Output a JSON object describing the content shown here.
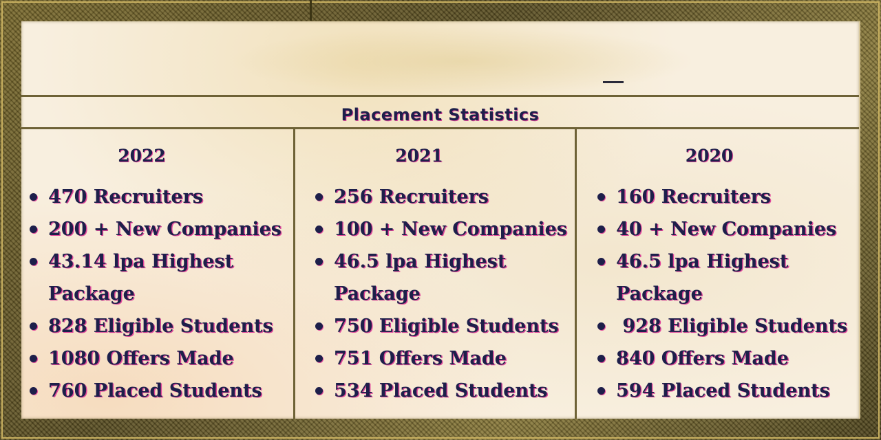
{
  "title": "Placement  Statistics",
  "columns": [
    {
      "year": "2022",
      "items": [
        "470 Recruiters",
        "200 + New Companies",
        "43.14 lpa Highest\nPackage",
        "828 Eligible Students",
        "1080 Offers Made",
        "760 Placed Students"
      ]
    },
    {
      "year": "2021",
      "items": [
        "256 Recruiters",
        "100 + New Companies",
        "46.5 lpa Highest\nPackage",
        "750 Eligible Students",
        "751 Offers Made",
        "534 Placed Students"
      ]
    },
    {
      "year": "2020",
      "items": [
        "160 Recruiters",
        "40 + New Companies",
        "46.5 lpa Highest\nPackage",
        " 928 Eligible Students",
        "840 Offers Made",
        "594 Placed Students"
      ]
    }
  ],
  "colors": {
    "text": "#1d1f4a",
    "text_shadow": "#e0489a",
    "frame": "#6b5e2a",
    "paper": "#f8efdf"
  }
}
